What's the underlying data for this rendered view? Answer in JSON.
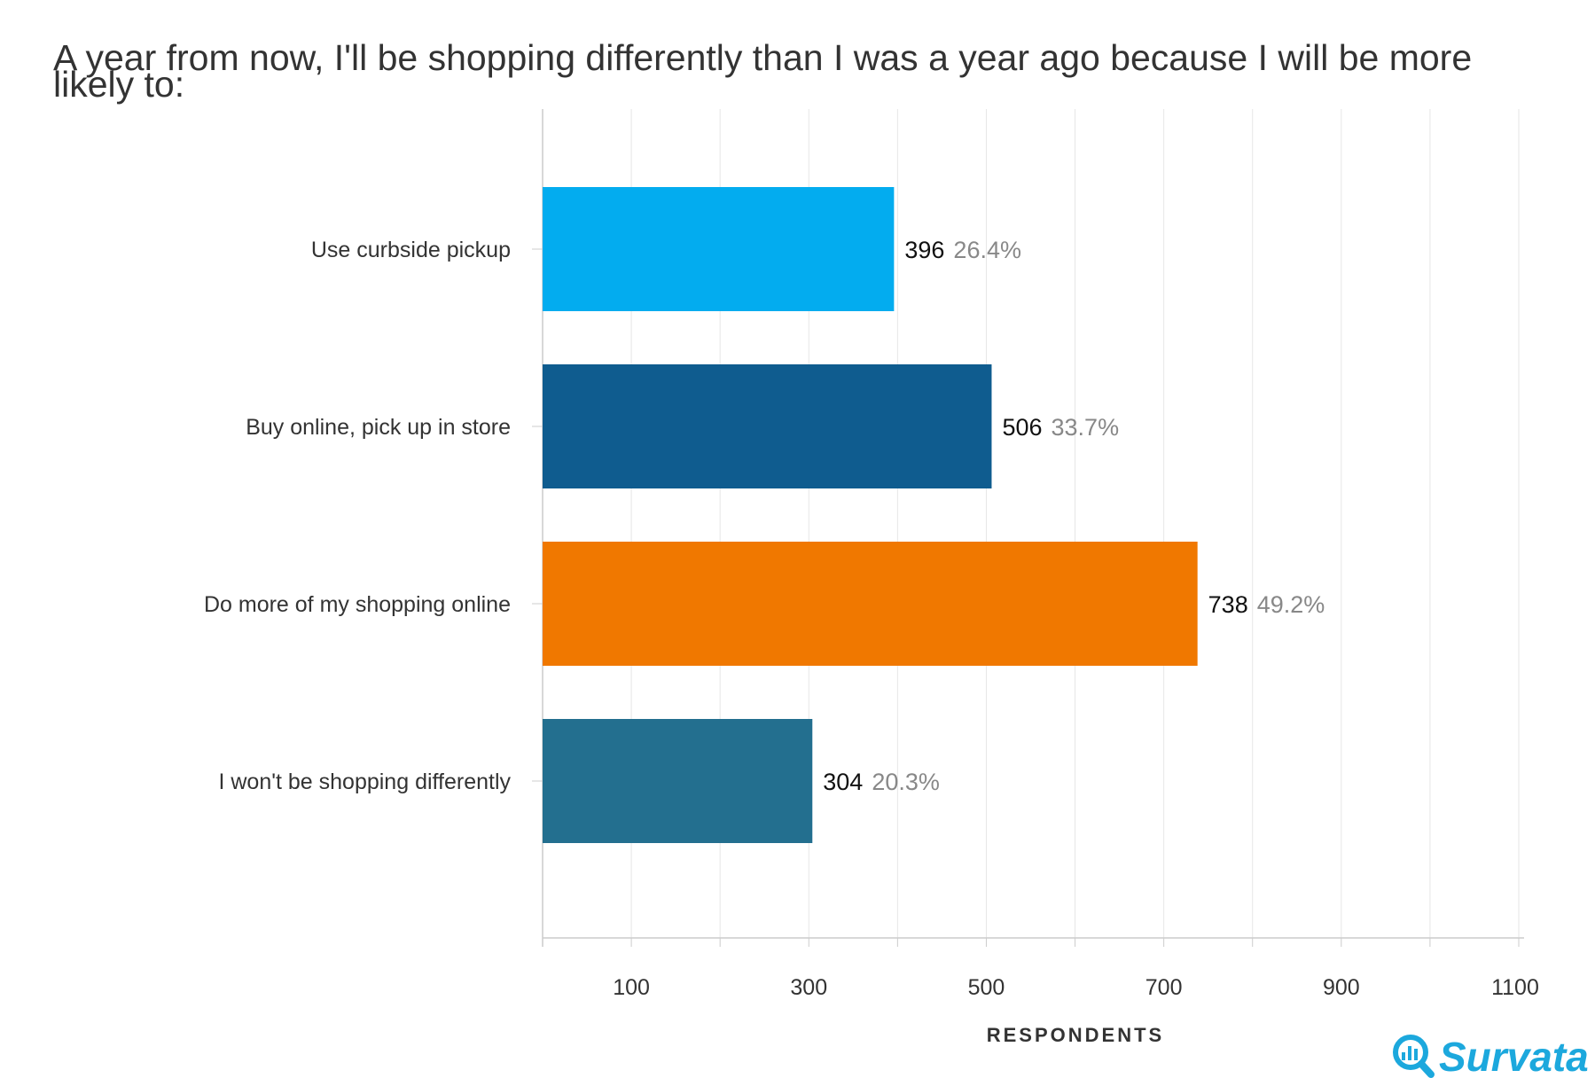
{
  "chart_data": {
    "type": "bar",
    "orientation": "horizontal",
    "title": "A year from now, I'll be shopping differently than I was a year ago because I will be more likely to:",
    "xlabel": "RESPONDENTS",
    "xlim": [
      0,
      1100
    ],
    "xticks": [
      "100",
      "300",
      "500",
      "700",
      "900",
      "1100"
    ],
    "grid": true,
    "categories": [
      "Use curbside pickup",
      "Buy online, pick up in store",
      "Do more of my shopping online",
      "I won't be shopping differently"
    ],
    "values": [
      396,
      506,
      738,
      304
    ],
    "percent_labels": [
      "26.4%",
      "33.7%",
      "49.2%",
      "20.3%"
    ],
    "colors": [
      "#03acef",
      "#0f5c8f",
      "#f07800",
      "#236f8f"
    ]
  },
  "brand": {
    "name": "Survata",
    "color": "#1ca8dd"
  }
}
